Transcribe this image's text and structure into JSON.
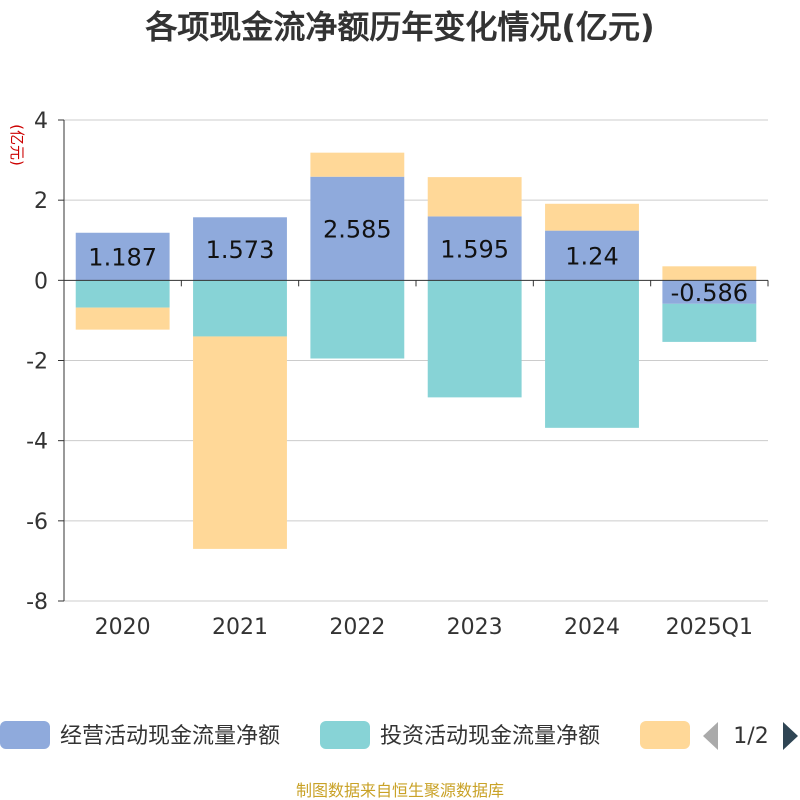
{
  "chart_data": {
    "type": "bar",
    "stacked": true,
    "title": "各项现金流净额历年变化情况(亿元)",
    "ylabel": "(亿元)",
    "xlabel": "",
    "ylim": [
      -8,
      4
    ],
    "yticks": [
      4,
      2,
      0,
      -2,
      -4,
      -6,
      -8
    ],
    "categories": [
      "2020",
      "2021",
      "2022",
      "2023",
      "2024",
      "2025Q1"
    ],
    "series": [
      {
        "name": "经营活动现金流量净额",
        "color": "#8faadc",
        "values": [
          1.187,
          1.573,
          2.585,
          1.595,
          1.24,
          -0.586
        ],
        "labels": [
          "1.187",
          "1.573",
          "2.585",
          "1.595",
          "1.24",
          "-0.586"
        ]
      },
      {
        "name": "投资活动现金流量净额",
        "color": "#87d3d6",
        "values": [
          -0.68,
          -1.4,
          -1.95,
          -2.92,
          -3.68,
          -0.95
        ]
      },
      {
        "name": "",
        "color": "#ffd898",
        "values": [
          -0.55,
          -5.3,
          0.6,
          0.98,
          0.67,
          0.35
        ]
      }
    ],
    "legend_position": "bottom",
    "grid": true
  },
  "legend": {
    "page_indicator": "1/2"
  },
  "source": "制图数据来自恒生聚源数据库"
}
